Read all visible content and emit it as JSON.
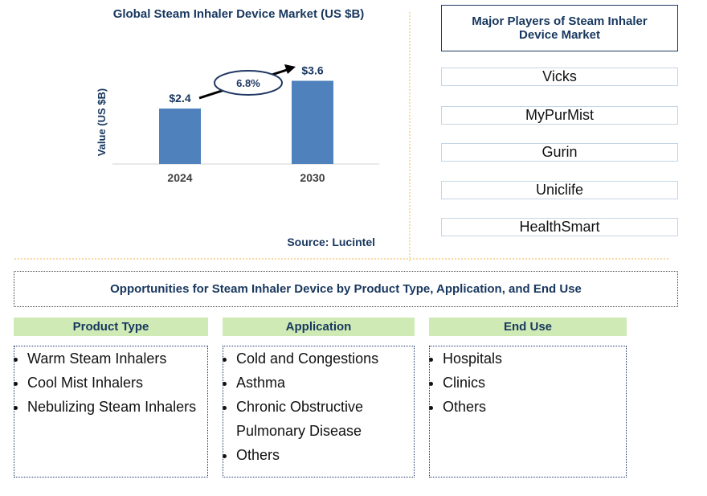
{
  "chart_data": {
    "type": "bar",
    "title": "Global Steam Inhaler Device Market (US $B)",
    "y_label": "Value (US $B)",
    "categories": [
      "2024",
      "2030"
    ],
    "values": [
      2.4,
      3.6
    ],
    "value_labels": [
      "$2.4",
      "$3.6"
    ],
    "color": "#4f81bd",
    "ylim": [
      0,
      4
    ],
    "annotation": "6.8%",
    "source": "Source: Lucintel"
  },
  "players": {
    "title": "Major Players of Steam Inhaler Device Market",
    "items": [
      "Vicks",
      "MyPurMist",
      "Gurin",
      "Uniclife",
      "HealthSmart"
    ]
  },
  "opportunities": {
    "title": "Opportunities for Steam Inhaler Device by Product Type, Application, and End Use",
    "columns": [
      {
        "header": "Product Type",
        "items": [
          "Warm Steam Inhalers",
          "Cool Mist Inhalers",
          "Nebulizing Steam Inhalers"
        ]
      },
      {
        "header": "Application",
        "items": [
          "Cold and Congestions",
          "Asthma",
          "Chronic Obstructive Pulmonary Disease",
          "Others"
        ]
      },
      {
        "header": "End Use",
        "items": [
          "Hospitals",
          "Clinics",
          "Others"
        ]
      }
    ]
  }
}
